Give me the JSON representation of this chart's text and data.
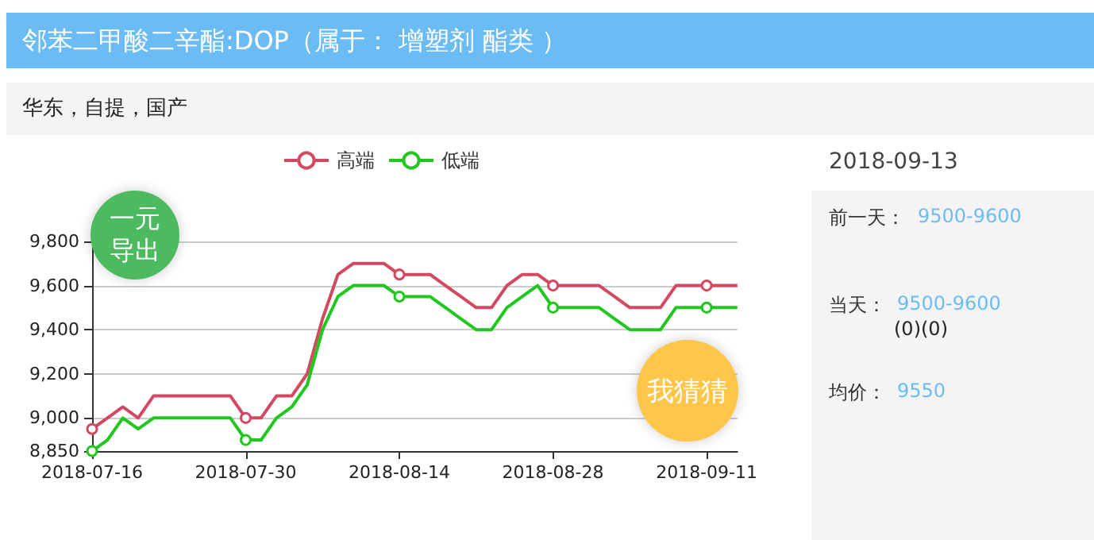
{
  "chart_data": {
    "type": "line",
    "title": "邻苯二甲酸二辛酯:DOP（属于： 增塑剂 酯类 ）",
    "subtitle": "华东，自提，国产",
    "categories": [
      "2018-07-16",
      null,
      null,
      null,
      null,
      null,
      null,
      null,
      null,
      null,
      "2018-07-30",
      null,
      null,
      null,
      null,
      null,
      null,
      null,
      null,
      null,
      "2018-08-14",
      null,
      null,
      null,
      null,
      null,
      null,
      null,
      null,
      null,
      "2018-08-28",
      null,
      null,
      null,
      null,
      null,
      null,
      null,
      null,
      null,
      "2018-09-11",
      null,
      null
    ],
    "series": [
      {
        "name": "高端",
        "color": "#d14a61",
        "values": [
          8950,
          9000,
          9050,
          9000,
          9100,
          9100,
          9100,
          9100,
          9100,
          9100,
          9000,
          9000,
          9100,
          9100,
          9200,
          9450,
          9650,
          9700,
          9700,
          9700,
          9650,
          9650,
          9650,
          9600,
          9550,
          9500,
          9500,
          9600,
          9650,
          9650,
          9600,
          9600,
          9600,
          9600,
          9550,
          9500,
          9500,
          9500,
          9600,
          9600,
          9600,
          9600,
          9600
        ]
      },
      {
        "name": "低端",
        "color": "#1fc71f",
        "values": [
          8850,
          8900,
          9000,
          8950,
          9000,
          9000,
          9000,
          9000,
          9000,
          9000,
          8900,
          8900,
          9000,
          9050,
          9150,
          9400,
          9550,
          9600,
          9600,
          9600,
          9550,
          9550,
          9550,
          9500,
          9450,
          9400,
          9400,
          9500,
          9550,
          9600,
          9500,
          9500,
          9500,
          9500,
          9450,
          9400,
          9400,
          9400,
          9500,
          9500,
          9500,
          9500,
          9500
        ]
      }
    ],
    "ylim": [
      8850,
      9800
    ],
    "yticks": [
      {
        "value": 8850,
        "label": "8,850"
      },
      {
        "value": 9000,
        "label": "9,000"
      },
      {
        "value": 9200,
        "label": "9,200"
      },
      {
        "value": 9400,
        "label": "9,400"
      },
      {
        "value": 9600,
        "label": "9,600"
      },
      {
        "value": 9800,
        "label": "9,800"
      }
    ],
    "grid": "y",
    "legend": "top",
    "line_style": "solid",
    "annotations": [
      "一元导出",
      "我猜猜",
      "2018-09-13",
      "前一天：",
      "9500-9600",
      "当天：",
      "9500-9600",
      "(0)(0)",
      "均价：",
      "9550"
    ]
  }
}
